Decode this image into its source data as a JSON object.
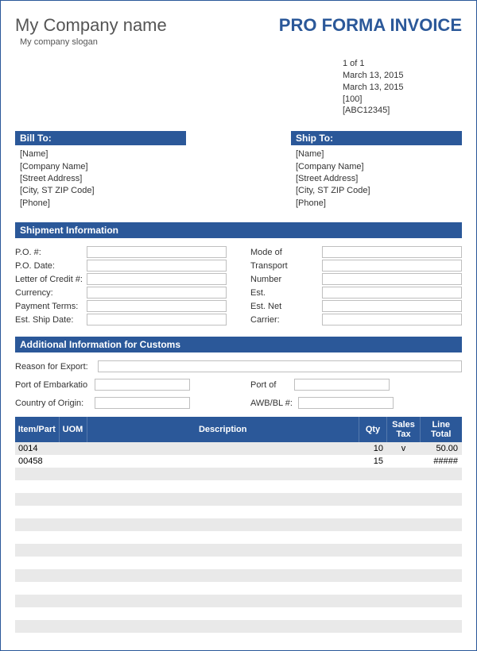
{
  "header": {
    "company_name": "My Company name",
    "company_slogan": "My company slogan",
    "invoice_title": "PRO FORMA INVOICE"
  },
  "meta": {
    "page": "1 of 1",
    "date1": "March 13, 2015",
    "date2": "March 13, 2015",
    "ref1": "[100]",
    "ref2": "[ABC12345]"
  },
  "bill_to": {
    "header": "Bill To:",
    "name": "[Name]",
    "company": "[Company Name]",
    "street": "[Street Address]",
    "city": "[City, ST  ZIP Code]",
    "phone": "[Phone]"
  },
  "ship_to": {
    "header": "Ship To:",
    "name": "[Name]",
    "company": "[Company Name]",
    "street": "[Street Address]",
    "city": "[City, ST  ZIP Code]",
    "phone": "[Phone]"
  },
  "sections": {
    "shipment": "Shipment Information",
    "customs": "Additional Information for Customs"
  },
  "shipment_left": {
    "po_num": "P.O. #:",
    "po_date": "P.O. Date:",
    "loc": "Letter of Credit #:",
    "currency": "Currency:",
    "terms": "Payment Terms:",
    "ship_date": "Est. Ship Date:"
  },
  "shipment_right": {
    "mode": "Mode of",
    "transport": "Transport",
    "number": "Number",
    "est": "Est.",
    "est_net": "Est. Net",
    "carrier": "Carrier:"
  },
  "customs": {
    "reason": "Reason for Export:",
    "embark": "Port of Embarkatio",
    "port_of": "Port of",
    "origin": "Country of Origin:",
    "awb": "AWB/BL #:"
  },
  "table": {
    "headers": {
      "item": "Item/Part",
      "uom": "UOM",
      "desc": "Description",
      "qty": "Qty",
      "tax": "Sales Tax",
      "total": "Line Total"
    },
    "rows": [
      {
        "item": "0014",
        "uom": "",
        "desc": "",
        "qty": "10",
        "tax": "v",
        "total": "50.00"
      },
      {
        "item": "00458",
        "uom": "",
        "desc": "",
        "qty": "15",
        "tax": "",
        "total": "#####"
      }
    ],
    "empty_row_count": 14
  },
  "colors": {
    "primary": "#2b5899",
    "stripe": "#e9e9e9",
    "border": "#bfbfbf",
    "text_gray": "#555555"
  }
}
